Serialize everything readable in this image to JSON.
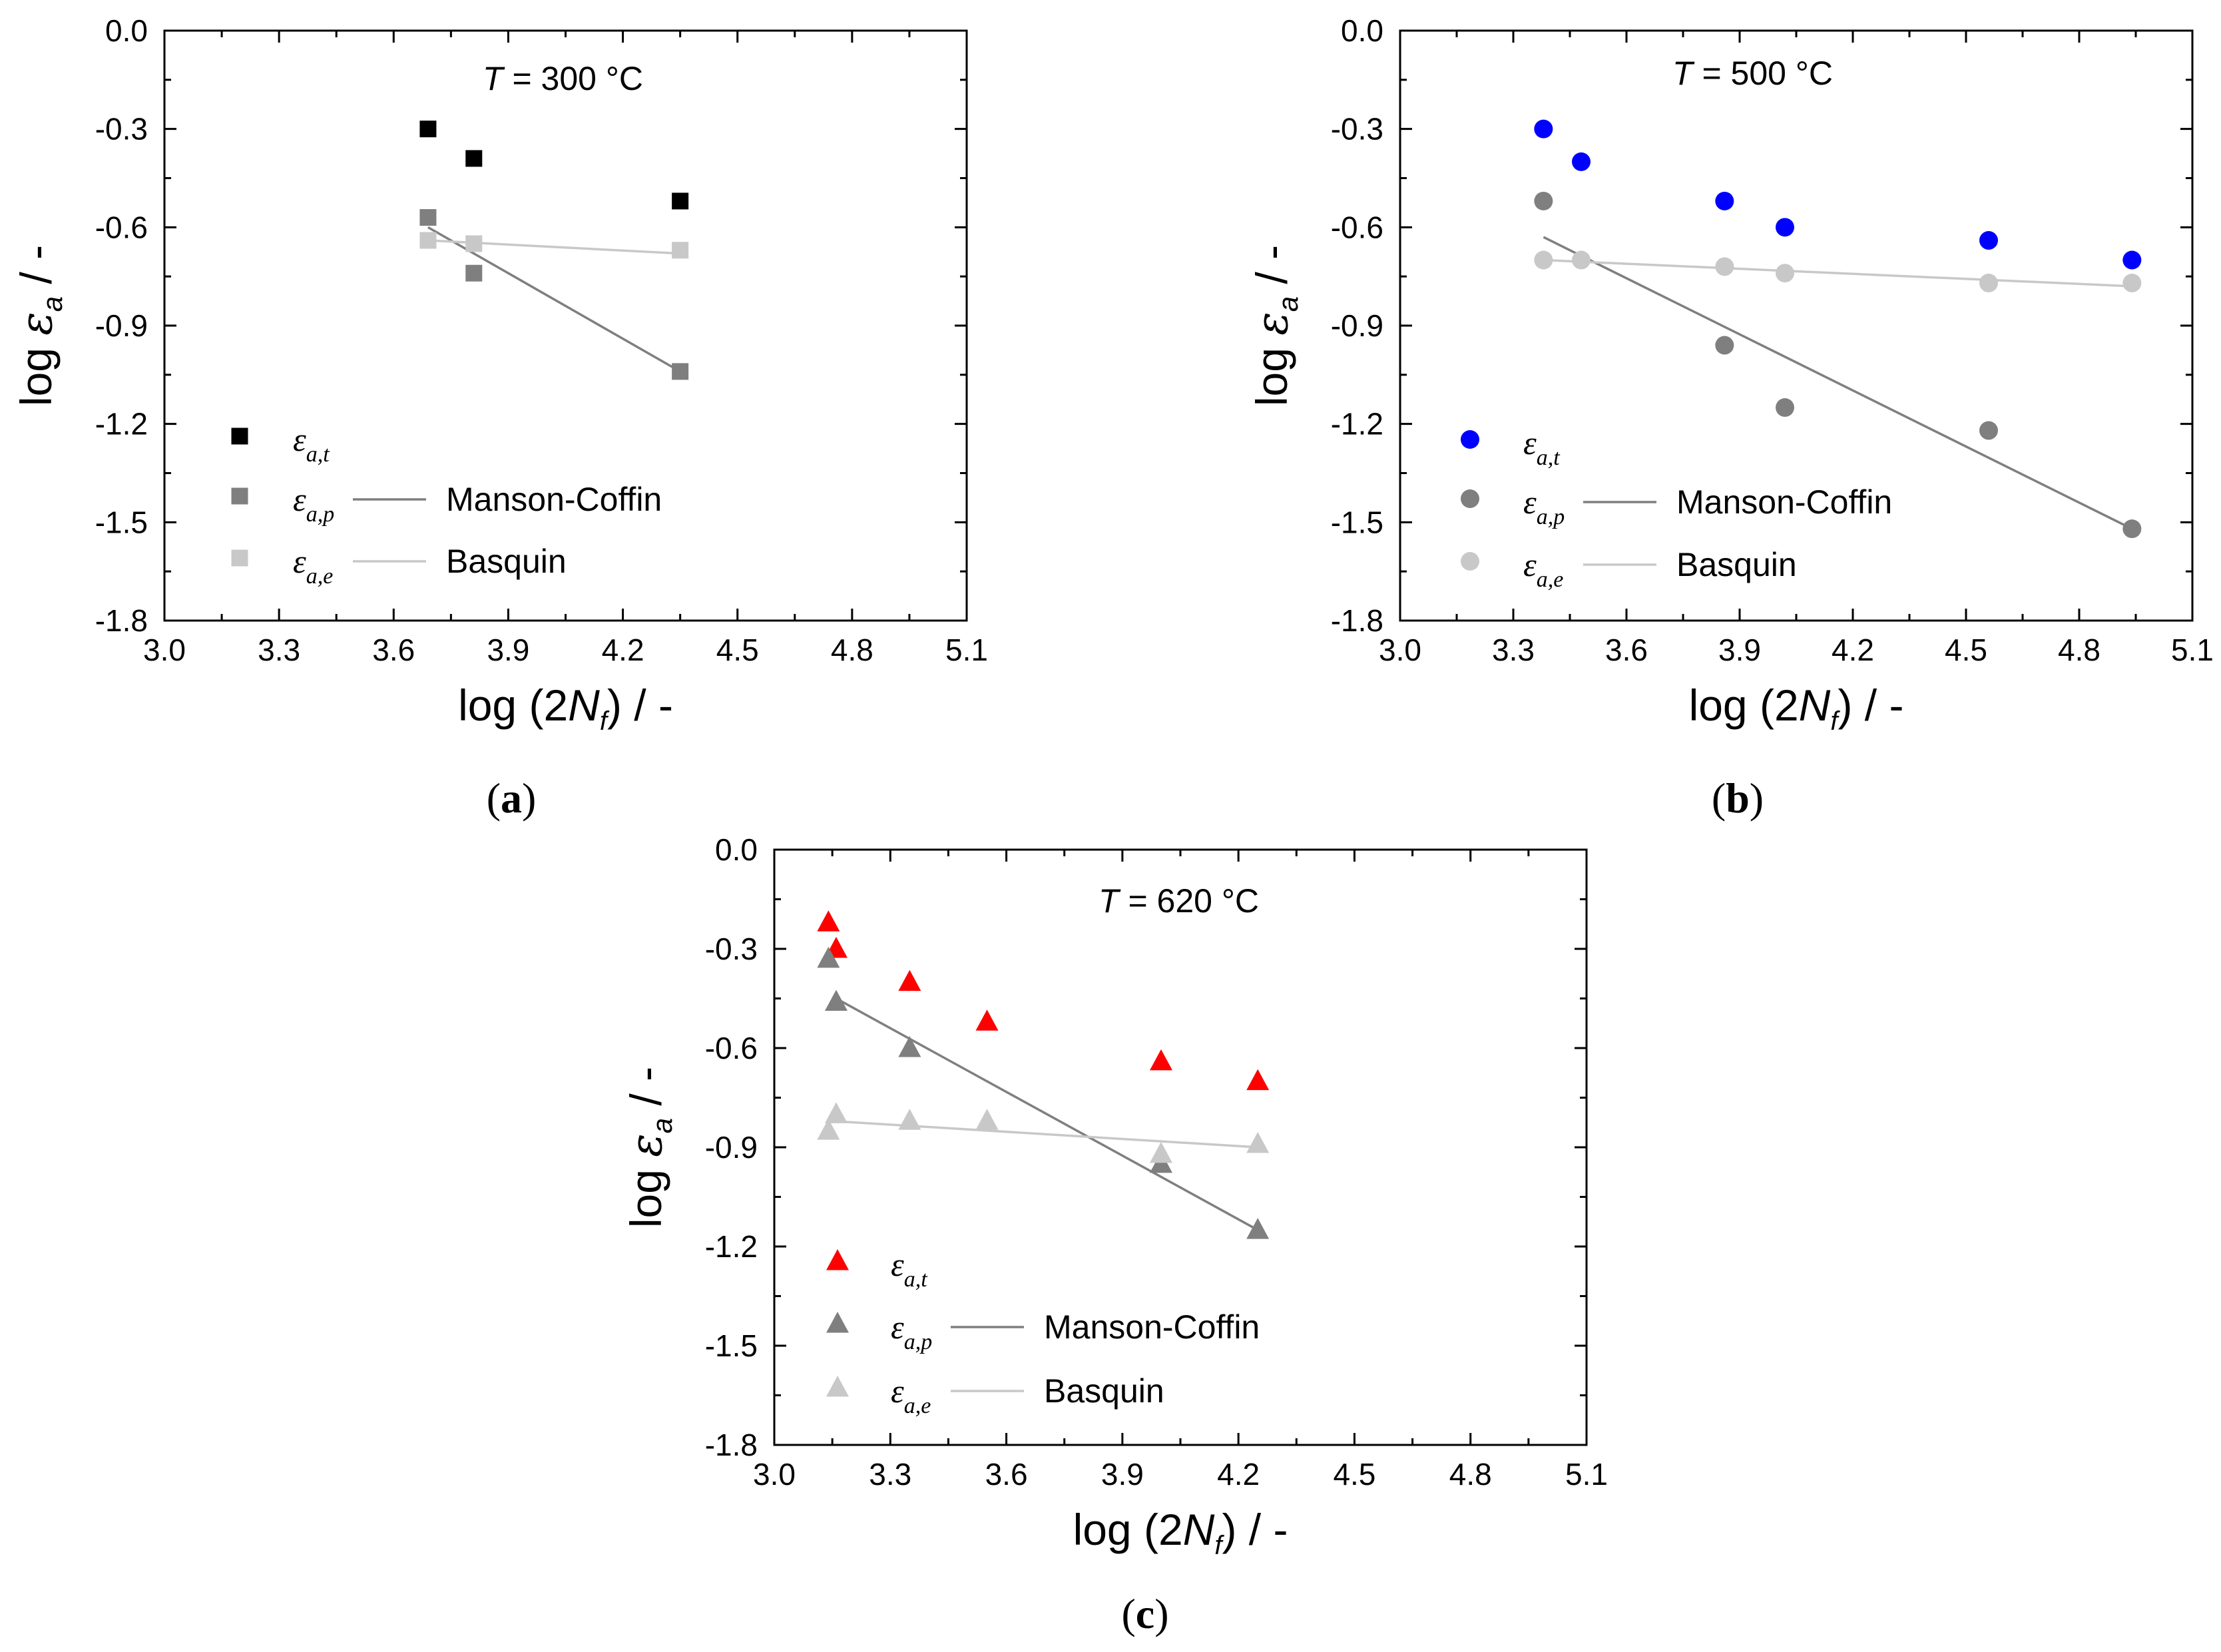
{
  "chart_data": [
    {
      "type": "scatter",
      "panel_label": "a",
      "annotation": {
        "italic": "T",
        "text": " = 300 °C"
      },
      "xlabel": {
        "prefix": "log (2",
        "italic": "N",
        "sub": "f",
        "suffix": ") / -"
      },
      "ylabel": {
        "prefix": "log ",
        "symbol": "ε",
        "sub": "a",
        "suffix": " / -"
      },
      "xlim": [
        3.0,
        5.1
      ],
      "ylim": [
        -1.8,
        0.0
      ],
      "xticks": [
        "3.0",
        "3.3",
        "3.6",
        "3.9",
        "4.2",
        "4.5",
        "4.8",
        "5.1"
      ],
      "yticks": [
        "0.0",
        "-0.3",
        "-0.6",
        "-0.9",
        "-1.2",
        "-1.5",
        "-1.8"
      ],
      "marker": "square",
      "series": [
        {
          "name": "ε_a,t",
          "label_main": "ε",
          "label_sub": "a,t",
          "color": "#000000",
          "points": [
            [
              3.69,
              -0.3
            ],
            [
              3.81,
              -0.39
            ],
            [
              4.35,
              -0.52
            ]
          ]
        },
        {
          "name": "ε_a,p",
          "label_main": "ε",
          "label_sub": "a,p",
          "color": "#7f7f7f",
          "points": [
            [
              3.69,
              -0.57
            ],
            [
              3.81,
              -0.74
            ],
            [
              4.35,
              -1.04
            ]
          ]
        },
        {
          "name": "ε_a,e",
          "label_main": "ε",
          "label_sub": "a,e",
          "color": "#c8c8c8",
          "points": [
            [
              3.69,
              -0.64
            ],
            [
              3.81,
              -0.65
            ],
            [
              4.35,
              -0.67
            ]
          ]
        }
      ],
      "fits": [
        {
          "name": "Manson-Coffin",
          "color": "#7f7f7f",
          "from": [
            3.69,
            -0.6
          ],
          "to": [
            4.35,
            -1.04
          ]
        },
        {
          "name": "Basquin",
          "color": "#c8c8c8",
          "from": [
            3.69,
            -0.64
          ],
          "to": [
            4.35,
            -0.68
          ]
        }
      ]
    },
    {
      "type": "scatter",
      "panel_label": "b",
      "annotation": {
        "italic": "T",
        "text": " = 500 °C"
      },
      "xlabel": {
        "prefix": "log (2",
        "italic": "N",
        "sub": "f",
        "suffix": ") / -"
      },
      "ylabel": {
        "prefix": "log ",
        "symbol": "ε",
        "sub": "a",
        "suffix": " / -"
      },
      "xlim": [
        3.0,
        5.1
      ],
      "ylim": [
        -1.8,
        0.0
      ],
      "xticks": [
        "3.0",
        "3.3",
        "3.6",
        "3.9",
        "4.2",
        "4.5",
        "4.8",
        "5.1"
      ],
      "yticks": [
        "0.0",
        "-0.3",
        "-0.6",
        "-0.9",
        "-1.2",
        "-1.5",
        "-1.8"
      ],
      "marker": "circle",
      "series": [
        {
          "name": "ε_a,t",
          "label_main": "ε",
          "label_sub": "a,t",
          "color": "#0000ff",
          "points": [
            [
              3.38,
              -0.3
            ],
            [
              3.48,
              -0.4
            ],
            [
              3.86,
              -0.52
            ],
            [
              4.02,
              -0.6
            ],
            [
              4.56,
              -0.64
            ],
            [
              4.94,
              -0.7
            ]
          ]
        },
        {
          "name": "ε_a,p",
          "label_main": "ε",
          "label_sub": "a,p",
          "color": "#7f7f7f",
          "points": [
            [
              3.38,
              -0.52
            ],
            [
              3.86,
              -0.96
            ],
            [
              4.02,
              -1.15
            ],
            [
              4.56,
              -1.22
            ],
            [
              4.94,
              -1.52
            ]
          ]
        },
        {
          "name": "ε_a,e",
          "label_main": "ε",
          "label_sub": "a,e",
          "color": "#c8c8c8",
          "points": [
            [
              3.38,
              -0.7
            ],
            [
              3.48,
              -0.7
            ],
            [
              3.86,
              -0.72
            ],
            [
              4.02,
              -0.74
            ],
            [
              4.56,
              -0.77
            ],
            [
              4.94,
              -0.77
            ]
          ]
        }
      ],
      "fits": [
        {
          "name": "Manson-Coffin",
          "color": "#7f7f7f",
          "from": [
            3.38,
            -0.63
          ],
          "to": [
            4.94,
            -1.52
          ]
        },
        {
          "name": "Basquin",
          "color": "#c8c8c8",
          "from": [
            3.38,
            -0.7
          ],
          "to": [
            4.94,
            -0.78
          ]
        }
      ]
    },
    {
      "type": "scatter",
      "panel_label": "c",
      "annotation": {
        "italic": "T",
        "text": " =  620 °C"
      },
      "xlabel": {
        "prefix": "log (2",
        "italic": "N",
        "sub": "f",
        "suffix": ") / -"
      },
      "ylabel": {
        "prefix": "log ",
        "symbol": "ε",
        "sub": "a",
        "suffix": " / -"
      },
      "xlim": [
        3.0,
        5.1
      ],
      "ylim": [
        -1.8,
        0.0
      ],
      "xticks": [
        "3.0",
        "3.3",
        "3.6",
        "3.9",
        "4.2",
        "4.5",
        "4.8",
        "5.1"
      ],
      "yticks": [
        "0.0",
        "-0.3",
        "-0.6",
        "-0.9",
        "-1.2",
        "-1.5",
        "-1.8"
      ],
      "marker": "triangle",
      "series": [
        {
          "name": "ε_a,t",
          "label_main": "ε",
          "label_sub": "a,t",
          "color": "#ff0000",
          "points": [
            [
              3.14,
              -0.22
            ],
            [
              3.16,
              -0.3
            ],
            [
              3.35,
              -0.4
            ],
            [
              3.55,
              -0.52
            ],
            [
              4.0,
              -0.64
            ],
            [
              4.25,
              -0.7
            ]
          ]
        },
        {
          "name": "ε_a,p",
          "label_main": "ε",
          "label_sub": "a,p",
          "color": "#7f7f7f",
          "points": [
            [
              3.14,
              -0.33
            ],
            [
              3.16,
              -0.46
            ],
            [
              3.35,
              -0.6
            ],
            [
              4.0,
              -0.95
            ],
            [
              4.25,
              -1.15
            ]
          ]
        },
        {
          "name": "ε_a,e",
          "label_main": "ε",
          "label_sub": "a,e",
          "color": "#c8c8c8",
          "points": [
            [
              3.14,
              -0.85
            ],
            [
              3.16,
              -0.8
            ],
            [
              3.35,
              -0.82
            ],
            [
              3.55,
              -0.82
            ],
            [
              4.0,
              -0.92
            ],
            [
              4.25,
              -0.89
            ]
          ]
        }
      ],
      "fits": [
        {
          "name": "Manson-Coffin",
          "color": "#7f7f7f",
          "from": [
            3.16,
            -0.45
          ],
          "to": [
            4.25,
            -1.15
          ]
        },
        {
          "name": "Basquin",
          "color": "#c8c8c8",
          "from": [
            3.14,
            -0.82
          ],
          "to": [
            4.25,
            -0.9
          ]
        }
      ]
    }
  ]
}
